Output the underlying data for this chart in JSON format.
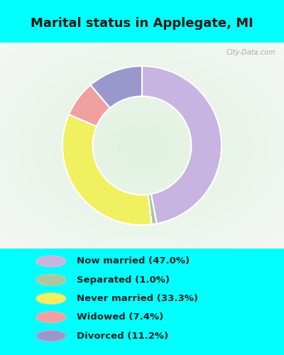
{
  "title": "Marital status in Applegate, MI",
  "title_fontsize": 13,
  "title_color": "#1a1a1a",
  "background_color_cyan": "#00FFFF",
  "slices": [
    {
      "label": "Now married (47.0%)",
      "value": 47.0,
      "color": "#c8b4e0"
    },
    {
      "label": "Separated (1.0%)",
      "value": 1.0,
      "color": "#a8c8a0"
    },
    {
      "label": "Never married (33.3%)",
      "value": 33.3,
      "color": "#f0f060"
    },
    {
      "label": "Widowed (7.4%)",
      "value": 7.4,
      "color": "#f0a0a0"
    },
    {
      "label": "Divorced (11.2%)",
      "value": 11.2,
      "color": "#9898cc"
    }
  ],
  "legend_labels": [
    "Now married (47.0%)",
    "Separated (1.0%)",
    "Never married (33.3%)",
    "Widowed (7.4%)",
    "Divorced (11.2%)"
  ],
  "legend_colors": [
    "#c8b4e0",
    "#a8c8a0",
    "#f0f060",
    "#f0a0a0",
    "#9898cc"
  ],
  "donut_width": 0.38,
  "start_angle": 90,
  "watermark": "City-Data.com"
}
